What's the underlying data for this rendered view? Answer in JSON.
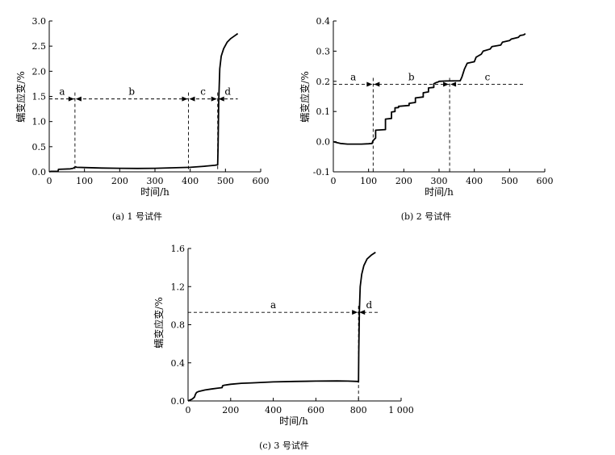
{
  "chart_data": [
    {
      "type": "line",
      "caption": "(a) 1 号试件",
      "xlabel": "时间/h",
      "ylabel": "蠕变应变/%",
      "xlim": [
        0,
        600
      ],
      "ylim": [
        0,
        3.0
      ],
      "xticks": [
        "0",
        "100",
        "200",
        "300",
        "400",
        "500",
        "600"
      ],
      "yticks": [
        "0.0",
        "0.5",
        "1.0",
        "1.5",
        "2.0",
        "2.5",
        "3.0"
      ],
      "x": [
        0,
        5,
        25,
        26,
        60,
        68,
        72,
        75,
        78,
        100,
        150,
        200,
        250,
        300,
        350,
        400,
        440,
        470,
        478,
        479,
        481,
        484,
        488,
        495,
        505,
        515,
        525,
        535
      ],
      "y": [
        0.0,
        0.01,
        0.01,
        0.05,
        0.06,
        0.07,
        0.09,
        0.1,
        0.09,
        0.085,
        0.075,
        0.07,
        0.068,
        0.07,
        0.08,
        0.09,
        0.11,
        0.13,
        0.14,
        0.5,
        1.4,
        2.05,
        2.3,
        2.45,
        2.58,
        2.65,
        2.7,
        2.75
      ],
      "guide_level": 1.45,
      "markers": [
        73,
        395,
        478
      ],
      "segment_labels": [
        "a",
        "b",
        "c",
        "d"
      ],
      "guide_x_range": [
        0,
        535
      ]
    },
    {
      "type": "line",
      "caption": "(b) 2 号试件",
      "xlabel": "时间/h",
      "ylabel": "蠕变应变/%",
      "xlim": [
        0,
        600
      ],
      "ylim": [
        -0.1,
        0.4
      ],
      "xticks": [
        "0",
        "100",
        "200",
        "300",
        "400",
        "500",
        "600"
      ],
      "yticks": [
        "-0.1",
        "0.0",
        "0.1",
        "0.2",
        "0.3",
        "0.4"
      ],
      "x": [
        0,
        10,
        20,
        40,
        60,
        80,
        100,
        110,
        112,
        118,
        120,
        120,
        148,
        148,
        165,
        165,
        175,
        175,
        185,
        185,
        215,
        215,
        233,
        233,
        255,
        255,
        270,
        270,
        285,
        285,
        292,
        298,
        300,
        320,
        360,
        365,
        372,
        380,
        400,
        405,
        420,
        425,
        445,
        450,
        475,
        480,
        500,
        505,
        525,
        530,
        540,
        545
      ],
      "y": [
        0.0,
        -0.003,
        -0.006,
        -0.008,
        -0.008,
        -0.008,
        -0.007,
        -0.006,
        0.002,
        0.01,
        0.012,
        0.038,
        0.04,
        0.075,
        0.077,
        0.098,
        0.1,
        0.112,
        0.113,
        0.117,
        0.12,
        0.127,
        0.13,
        0.145,
        0.148,
        0.162,
        0.165,
        0.178,
        0.18,
        0.192,
        0.196,
        0.198,
        0.2,
        0.201,
        0.202,
        0.215,
        0.24,
        0.26,
        0.265,
        0.28,
        0.29,
        0.3,
        0.307,
        0.315,
        0.32,
        0.33,
        0.335,
        0.34,
        0.346,
        0.352,
        0.354,
        0.358
      ],
      "guide_level": 0.19,
      "markers": [
        113,
        330
      ],
      "segment_labels": [
        "a",
        "b",
        "c"
      ],
      "guide_x_range": [
        0,
        545
      ]
    },
    {
      "type": "line",
      "caption": "(c) 3 号试件",
      "xlabel": "时间/h",
      "ylabel": "蠕变应变/%",
      "xlim": [
        0,
        1000
      ],
      "ylim": [
        0,
        1.6
      ],
      "xticks": [
        "0",
        "200",
        "400",
        "600",
        "800",
        "1 000"
      ],
      "yticks": [
        "0.0",
        "0.4",
        "0.8",
        "1.2",
        "1.6"
      ],
      "x": [
        0,
        20,
        30,
        35,
        40,
        50,
        80,
        110,
        140,
        160,
        162,
        170,
        200,
        250,
        300,
        400,
        500,
        600,
        700,
        750,
        795,
        800,
        801,
        804,
        808,
        815,
        825,
        840,
        860,
        880
      ],
      "y": [
        0.0,
        0.02,
        0.04,
        0.07,
        0.09,
        0.1,
        0.115,
        0.125,
        0.135,
        0.14,
        0.16,
        0.165,
        0.175,
        0.185,
        0.19,
        0.2,
        0.205,
        0.208,
        0.21,
        0.208,
        0.205,
        0.2,
        0.5,
        0.95,
        1.2,
        1.33,
        1.42,
        1.49,
        1.53,
        1.56
      ],
      "guide_level": 0.93,
      "markers": [
        800
      ],
      "segment_labels": [
        "a",
        "d"
      ],
      "guide_x_range": [
        0,
        900
      ]
    }
  ]
}
